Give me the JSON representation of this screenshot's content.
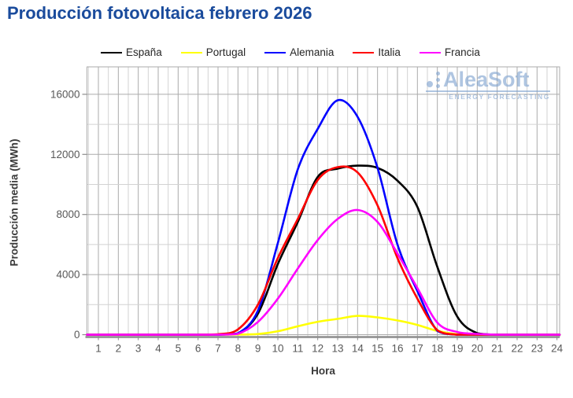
{
  "title": {
    "text": "Producción fotovoltaica febrero 2026",
    "color": "#1a4b9c"
  },
  "watermark": {
    "brand": "AleaSoft",
    "tagline": "ENERGY FORECASTING",
    "color": "#7fa3cf"
  },
  "chart_data": {
    "type": "line",
    "title": "Producción fotovoltaica febrero 2026",
    "xlabel": "Hora",
    "ylabel": "Producción media (MWh)",
    "x": [
      1,
      2,
      3,
      4,
      5,
      6,
      7,
      8,
      9,
      10,
      11,
      12,
      13,
      14,
      15,
      16,
      17,
      18,
      19,
      20,
      21,
      22,
      23,
      24
    ],
    "x_tick_labels": [
      "1",
      "2",
      "3",
      "4",
      "5",
      "6",
      "7",
      "8",
      "9",
      "10",
      "11",
      "12",
      "13",
      "14",
      "15",
      "16",
      "17",
      "18",
      "19",
      "20",
      "21",
      "22",
      "23",
      "24"
    ],
    "y_ticks": [
      0,
      4000,
      8000,
      12000,
      16000
    ],
    "y_minor_step": 2000,
    "x_minor_step": 0.5,
    "xlim": [
      0.4,
      24.2
    ],
    "ylim": [
      0,
      17800
    ],
    "grid": true,
    "legend_position": "top",
    "series": [
      {
        "name": "España",
        "color": "#000000",
        "values": [
          0,
          0,
          0,
          0,
          0,
          0,
          0,
          80,
          1400,
          4700,
          7500,
          10500,
          11050,
          11250,
          11100,
          10250,
          8500,
          4500,
          1200,
          100,
          0,
          0,
          0,
          0
        ]
      },
      {
        "name": "Portugal",
        "color": "#ffff00",
        "values": [
          0,
          0,
          0,
          0,
          0,
          0,
          0,
          10,
          40,
          230,
          560,
          860,
          1050,
          1250,
          1150,
          950,
          650,
          250,
          30,
          0,
          0,
          0,
          0,
          0
        ]
      },
      {
        "name": "Alemania",
        "color": "#0000ff",
        "values": [
          0,
          0,
          0,
          0,
          0,
          0,
          0,
          90,
          1600,
          6100,
          11000,
          13700,
          15600,
          14500,
          11100,
          6000,
          2900,
          250,
          0,
          0,
          0,
          0,
          0,
          0
        ]
      },
      {
        "name": "Italia",
        "color": "#ff0000",
        "values": [
          0,
          0,
          0,
          0,
          0,
          0,
          30,
          350,
          2000,
          5100,
          7700,
          10300,
          11150,
          10800,
          8600,
          5100,
          2400,
          300,
          0,
          0,
          0,
          0,
          0,
          0
        ]
      },
      {
        "name": "Francia",
        "color": "#ff00ff",
        "values": [
          0,
          0,
          0,
          0,
          0,
          0,
          0,
          60,
          850,
          2400,
          4400,
          6300,
          7700,
          8300,
          7500,
          5400,
          3100,
          800,
          180,
          50,
          0,
          0,
          0,
          0
        ]
      }
    ],
    "colors": {
      "grid_minor": "#d2d2d2",
      "grid_major": "#ababab",
      "axis": "#8c8c8c",
      "tick_label": "#595959"
    }
  }
}
